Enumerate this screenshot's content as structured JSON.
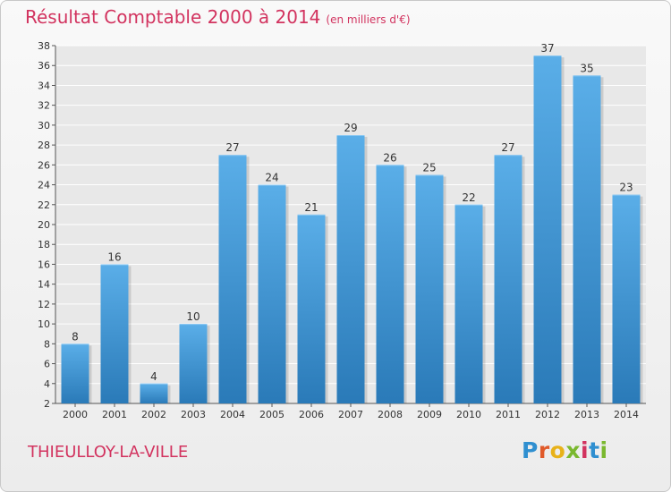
{
  "chart_data": {
    "type": "bar",
    "title": "Résultat Comptable 2000 à 2014",
    "subtitle": "(en milliers d'€)",
    "categories": [
      "2000",
      "2001",
      "2002",
      "2003",
      "2004",
      "2005",
      "2006",
      "2007",
      "2008",
      "2009",
      "2010",
      "2011",
      "2012",
      "2013",
      "2014"
    ],
    "values": [
      8,
      16,
      4,
      10,
      27,
      24,
      21,
      29,
      26,
      25,
      22,
      27,
      37,
      35,
      23
    ],
    "ylim": [
      2,
      38
    ],
    "yticks": [
      2,
      4,
      6,
      8,
      10,
      12,
      14,
      16,
      18,
      20,
      22,
      24,
      26,
      28,
      30,
      32,
      34,
      36,
      38
    ],
    "grid": true,
    "bar_color_top": "#5aaee8",
    "bar_color_bottom": "#2a7ab8"
  },
  "commune": "THIEULLOY-LA-VILLE",
  "logo": {
    "text": "Proxiti",
    "colors": [
      "#2f8fd0",
      "#e05a2a",
      "#e8b21a",
      "#7ab82f",
      "#d2335f",
      "#2f8fd0",
      "#7ab82f"
    ]
  }
}
